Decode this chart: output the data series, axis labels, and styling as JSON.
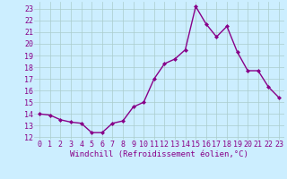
{
  "x": [
    0,
    1,
    2,
    3,
    4,
    5,
    6,
    7,
    8,
    9,
    10,
    11,
    12,
    13,
    14,
    15,
    16,
    17,
    18,
    19,
    20,
    21,
    22,
    23
  ],
  "y": [
    14.0,
    13.9,
    13.5,
    13.3,
    13.2,
    12.4,
    12.4,
    13.2,
    13.4,
    14.6,
    15.0,
    17.0,
    18.3,
    18.7,
    19.5,
    23.2,
    21.7,
    20.6,
    21.5,
    19.3,
    17.7,
    17.7,
    16.3,
    15.4
  ],
  "line_color": "#880088",
  "marker": "D",
  "marker_size": 2.0,
  "bg_color": "#cceeff",
  "grid_color": "#aacccc",
  "xlabel": "Windchill (Refroidissement éolien,°C)",
  "xlim": [
    -0.5,
    23.5
  ],
  "ylim": [
    11.8,
    23.6
  ],
  "yticks": [
    12,
    13,
    14,
    15,
    16,
    17,
    18,
    19,
    20,
    21,
    22,
    23
  ],
  "xticks": [
    0,
    1,
    2,
    3,
    4,
    5,
    6,
    7,
    8,
    9,
    10,
    11,
    12,
    13,
    14,
    15,
    16,
    17,
    18,
    19,
    20,
    21,
    22,
    23
  ],
  "xlabel_fontsize": 6.5,
  "tick_fontsize": 6.0,
  "line_width": 1.0
}
